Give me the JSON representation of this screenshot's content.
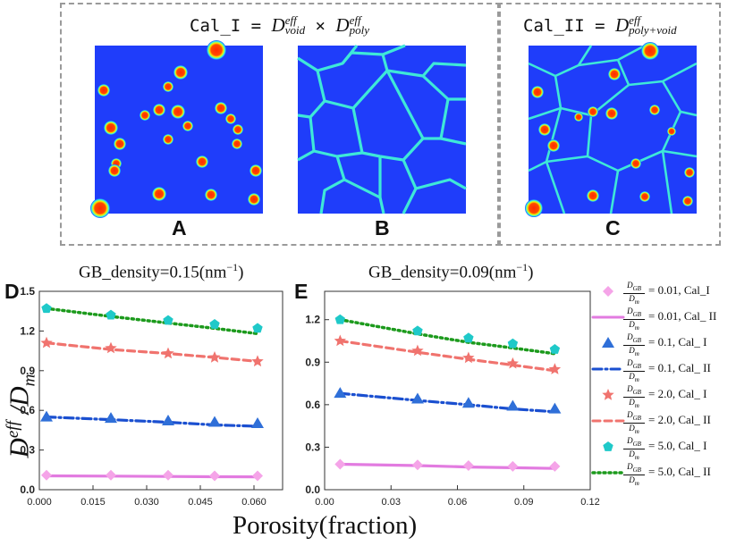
{
  "top": {
    "formula_left": {
      "prefix": "Cal_I = ",
      "d1_sup": "eff",
      "d1_sub": "void",
      "times": " × ",
      "d2_sup": "eff",
      "d2_sub": "poly"
    },
    "formula_right": {
      "prefix": "Cal_II = ",
      "d_sup": "eff",
      "d_sub": "poly+void"
    },
    "panel_labels": [
      "A",
      "B",
      "C"
    ]
  },
  "colors": {
    "background_blue": "#1f3dfa",
    "grain_boundary": "#3ee8d8",
    "void_red": "#ff2a00",
    "void_yellow": "#f4f400",
    "void_cyan": "#26f0f0",
    "dashed_frame": "#9a9a9a"
  },
  "bottom": {
    "y_axis_label_main": "D",
    "y_axis_label_sup": "eff",
    "y_axis_label_den": " /D",
    "y_axis_label_den_sub": "m",
    "x_axis_label": "Porosity(fraction)",
    "panel_labels": [
      "D",
      "E"
    ]
  },
  "legend": {
    "frac_num": "D",
    "frac_num_sub": "GB",
    "frac_den": "D",
    "frac_den_sub": "m",
    "items": [
      {
        "label": "= 0.01, Cal_I",
        "color": "#f5a4e8",
        "marker": "diamond"
      },
      {
        "label": "= 0.01, Cal_ II",
        "color": "#e27be0",
        "line": "solid"
      },
      {
        "label": "= 0.1, Cal_ I",
        "color": "#2f6fd8",
        "marker": "triangle"
      },
      {
        "label": "= 0.1, Cal_ II",
        "color": "#1a4fd0",
        "line": "dashdot"
      },
      {
        "label": "= 2.0, Cal_ I",
        "color": "#f0736e",
        "marker": "star"
      },
      {
        "label": "= 2.0, Cal_ II",
        "color": "#f0736e",
        "line": "dash"
      },
      {
        "label": "= 5.0, Cal_ I",
        "color": "#1fc9c9",
        "marker": "pentagon"
      },
      {
        "label": "= 5.0, Cal_ II",
        "color": "#1c9a1c",
        "line": "dot"
      }
    ]
  },
  "chart_data": [
    {
      "type": "line",
      "panel": "D",
      "title": "GB_density=0.15(nm",
      "title_sup": "−1",
      "title_end": ")",
      "xlabel": "Porosity(fraction)",
      "ylabel": "D^eff/D_m",
      "xlim": [
        0,
        0.068
      ],
      "ylim": [
        0,
        1.5
      ],
      "xticks": [
        "0.000",
        "0.015",
        "0.030",
        "0.045",
        "0.060"
      ],
      "xtick_values": [
        0,
        0.015,
        0.03,
        0.045,
        0.06
      ],
      "yticks": [
        "0.0",
        "0.3",
        "0.6",
        "0.9",
        "1.2",
        "1.5"
      ],
      "ytick_values": [
        0,
        0.3,
        0.6,
        0.9,
        1.2,
        1.5
      ],
      "x": [
        0.002,
        0.02,
        0.036,
        0.049,
        0.061
      ],
      "series": [
        {
          "name": "0.01, Cal_I",
          "kind": "marker",
          "values": [
            0.11,
            0.11,
            0.11,
            0.105,
            0.105
          ]
        },
        {
          "name": "0.01, Cal_II",
          "kind": "line",
          "values": [
            0.105,
            0.103,
            0.1,
            0.098,
            0.097
          ]
        },
        {
          "name": "0.1, Cal_I",
          "kind": "marker",
          "values": [
            0.55,
            0.54,
            0.52,
            0.51,
            0.5
          ]
        },
        {
          "name": "0.1, Cal_II",
          "kind": "line",
          "values": [
            0.55,
            0.53,
            0.51,
            0.49,
            0.48
          ]
        },
        {
          "name": "2.0, Cal_I",
          "kind": "marker",
          "values": [
            1.11,
            1.07,
            1.03,
            1.0,
            0.97
          ]
        },
        {
          "name": "2.0, Cal_II",
          "kind": "line",
          "values": [
            1.11,
            1.06,
            1.03,
            1.0,
            0.97
          ]
        },
        {
          "name": "5.0, Cal_I",
          "kind": "marker",
          "values": [
            1.37,
            1.32,
            1.28,
            1.25,
            1.22
          ]
        },
        {
          "name": "5.0, Cal_II",
          "kind": "line",
          "values": [
            1.37,
            1.31,
            1.26,
            1.22,
            1.18
          ]
        }
      ]
    },
    {
      "type": "line",
      "panel": "E",
      "title": "GB_density=0.09(nm",
      "title_sup": "−1",
      "title_end": ")",
      "xlabel": "Porosity(fraction)",
      "ylabel": "D^eff/D_m",
      "xlim": [
        0,
        0.12
      ],
      "ylim": [
        0,
        1.4
      ],
      "xticks": [
        "0.00",
        "0.03",
        "0.06",
        "0.09",
        "0.12"
      ],
      "xtick_values": [
        0,
        0.03,
        0.06,
        0.09,
        0.12
      ],
      "yticks": [
        "0.0",
        "0.3",
        "0.6",
        "0.9",
        "1.2"
      ],
      "ytick_values": [
        0,
        0.3,
        0.6,
        0.9,
        1.2
      ],
      "x": [
        0.007,
        0.042,
        0.065,
        0.085,
        0.104
      ],
      "series": [
        {
          "name": "0.01, Cal_I",
          "kind": "marker",
          "values": [
            0.18,
            0.175,
            0.17,
            0.165,
            0.165
          ]
        },
        {
          "name": "0.01, Cal_II",
          "kind": "line",
          "values": [
            0.18,
            0.17,
            0.16,
            0.155,
            0.15
          ]
        },
        {
          "name": "0.1, Cal_I",
          "kind": "marker",
          "values": [
            0.68,
            0.64,
            0.61,
            0.59,
            0.57
          ]
        },
        {
          "name": "0.1, Cal_II",
          "kind": "line",
          "values": [
            0.68,
            0.63,
            0.6,
            0.57,
            0.55
          ]
        },
        {
          "name": "2.0, Cal_I",
          "kind": "marker",
          "values": [
            1.05,
            0.98,
            0.93,
            0.89,
            0.85
          ]
        },
        {
          "name": "2.0, Cal_II",
          "kind": "line",
          "values": [
            1.05,
            0.97,
            0.92,
            0.88,
            0.84
          ]
        },
        {
          "name": "5.0, Cal_I",
          "kind": "marker",
          "values": [
            1.2,
            1.12,
            1.07,
            1.03,
            0.99
          ]
        },
        {
          "name": "5.0, Cal_II",
          "kind": "line",
          "values": [
            1.2,
            1.1,
            1.04,
            1.0,
            0.96
          ]
        }
      ]
    }
  ]
}
